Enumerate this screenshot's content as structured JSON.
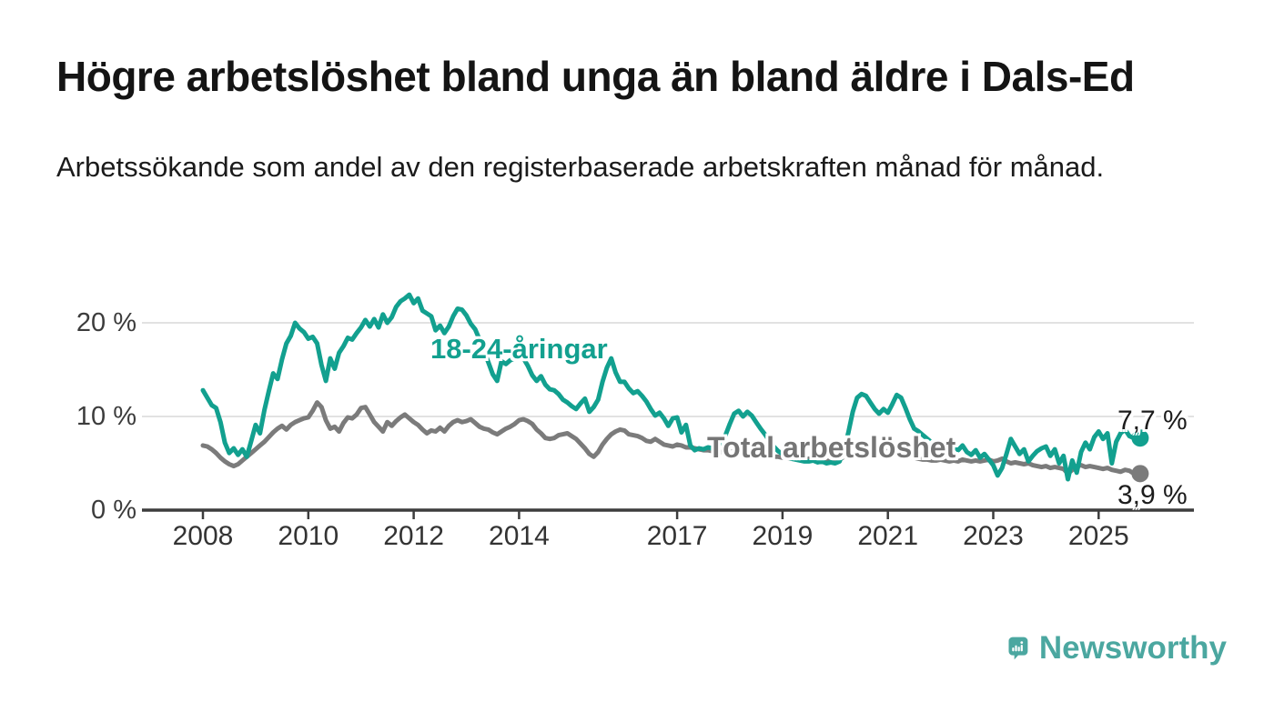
{
  "header": {
    "title": "Högre arbetslöshet bland unga än bland äldre i Dals-Ed",
    "subtitle": "Arbetssökande som andel av den registerbaserade arbetskraften månad för månad."
  },
  "chart_data": {
    "type": "line",
    "title": "Högre arbetslöshet bland unga än bland äldre i Dals-Ed",
    "subtitle": "Arbetssökande som andel av den registerbaserade arbetskraften månad för månad.",
    "x_unit": "month",
    "x_start": "2008-01",
    "x_end": "2025-09",
    "x_tick_years": [
      2008,
      2010,
      2012,
      2014,
      2017,
      2019,
      2021,
      2023,
      2025
    ],
    "y_ticks": [
      {
        "value": 0,
        "label": "0 %"
      },
      {
        "value": 10,
        "label": "10 %"
      },
      {
        "value": 20,
        "label": "20 %"
      }
    ],
    "ylim": [
      0,
      24
    ],
    "grid": "horizontal",
    "legend_position": "inline-labels",
    "series": [
      {
        "name": "Total arbetslöshet",
        "color": "#7b7b7b",
        "end_label": "3,9 %",
        "end_value": 3.9,
        "values": [
          6.9,
          6.8,
          6.5,
          6.1,
          5.6,
          5.2,
          4.9,
          4.7,
          4.9,
          5.3,
          5.7,
          6.1,
          6.5,
          6.9,
          7.3,
          7.8,
          8.3,
          8.7,
          9.0,
          8.6,
          9.1,
          9.4,
          9.6,
          9.8,
          9.9,
          10.6,
          11.5,
          11.0,
          9.6,
          8.7,
          8.9,
          8.4,
          9.3,
          9.9,
          9.8,
          10.2,
          10.9,
          11.0,
          10.2,
          9.4,
          8.9,
          8.4,
          9.4,
          9.0,
          9.5,
          9.9,
          10.2,
          9.8,
          9.4,
          9.1,
          8.6,
          8.2,
          8.5,
          8.4,
          8.8,
          8.4,
          9.0,
          9.4,
          9.6,
          9.4,
          9.5,
          9.7,
          9.3,
          8.9,
          8.7,
          8.6,
          8.3,
          8.1,
          8.4,
          8.7,
          8.9,
          9.2,
          9.6,
          9.7,
          9.5,
          9.2,
          8.6,
          8.2,
          7.7,
          7.6,
          7.7,
          8.0,
          8.1,
          8.2,
          7.9,
          7.6,
          7.1,
          6.6,
          6.0,
          5.7,
          6.2,
          7.0,
          7.6,
          8.1,
          8.4,
          8.6,
          8.5,
          8.1,
          8.0,
          7.9,
          7.7,
          7.4,
          7.3,
          7.6,
          7.3,
          7.0,
          6.9,
          6.8,
          7.0,
          6.9,
          6.7,
          6.7,
          6.6,
          6.5,
          6.4,
          6.4,
          6.3,
          6.3,
          6.2,
          6.2,
          6.2,
          6.3,
          6.2,
          6.1,
          6.0,
          6.0,
          5.9,
          5.9,
          5.8,
          5.8,
          5.7,
          5.7,
          5.6,
          5.6,
          5.5,
          5.5,
          5.4,
          5.4,
          5.5,
          5.4,
          5.4,
          5.3,
          5.3,
          5.3,
          5.3,
          5.4,
          5.7,
          6.2,
          6.6,
          6.8,
          6.9,
          6.8,
          6.7,
          6.5,
          6.4,
          6.3,
          6.3,
          6.2,
          6.1,
          6.0,
          5.9,
          5.7,
          5.6,
          5.5,
          5.4,
          5.4,
          5.3,
          5.3,
          5.4,
          5.3,
          5.2,
          5.3,
          5.2,
          5.4,
          5.3,
          5.2,
          5.3,
          5.2,
          5.3,
          5.4,
          5.2,
          5.3,
          5.5,
          5.2,
          5.0,
          5.1,
          5.0,
          4.9,
          5.0,
          4.8,
          4.7,
          4.6,
          4.7,
          4.5,
          4.6,
          4.5,
          4.4,
          3.9,
          4.3,
          4.7,
          4.8,
          4.6,
          4.7,
          4.6,
          4.5,
          4.4,
          4.5,
          4.3,
          4.2,
          4.1,
          4.3,
          4.2,
          3.9
        ]
      },
      {
        "name": "18-24-åringar",
        "color": "#12a08f",
        "end_label": "7,7 %",
        "end_value": 7.7,
        "values": [
          12.8,
          12.0,
          11.2,
          10.9,
          9.4,
          7.2,
          6.1,
          6.6,
          5.9,
          6.5,
          5.7,
          7.4,
          9.1,
          8.2,
          10.7,
          12.7,
          14.6,
          14.0,
          16.1,
          17.8,
          18.6,
          20.0,
          19.4,
          19.0,
          18.3,
          18.5,
          17.8,
          15.5,
          13.8,
          16.2,
          15.1,
          16.8,
          17.5,
          18.4,
          18.2,
          18.9,
          19.5,
          20.3,
          19.6,
          20.4,
          19.5,
          20.9,
          20.0,
          20.6,
          21.7,
          22.3,
          22.6,
          23.0,
          22.1,
          22.6,
          21.3,
          21.0,
          20.7,
          19.2,
          19.7,
          18.9,
          19.6,
          20.7,
          21.5,
          21.4,
          20.8,
          19.9,
          19.3,
          18.2,
          17.0,
          15.8,
          14.5,
          13.8,
          15.9,
          15.6,
          16.0,
          16.2,
          16.3,
          16.2,
          15.4,
          14.4,
          13.8,
          14.3,
          13.4,
          12.9,
          12.8,
          12.4,
          11.8,
          11.5,
          11.1,
          10.8,
          11.4,
          11.9,
          10.5,
          11.0,
          11.8,
          13.7,
          15.2,
          16.2,
          14.7,
          13.7,
          13.7,
          13.0,
          12.5,
          12.7,
          12.2,
          11.6,
          10.8,
          10.1,
          10.4,
          9.8,
          9.0,
          9.8,
          9.9,
          8.3,
          9.1,
          6.9,
          6.4,
          6.6,
          6.5,
          6.7,
          6.6,
          6.8,
          7.2,
          8.0,
          9.2,
          10.3,
          10.6,
          10.0,
          10.5,
          10.1,
          9.4,
          8.7,
          8.1,
          7.4,
          6.8,
          6.3,
          6.0,
          5.7,
          5.5,
          5.4,
          5.3,
          5.2,
          5.2,
          5.3,
          5.1,
          5.2,
          5.0,
          5.1,
          5.0,
          5.2,
          6.5,
          8.3,
          10.5,
          12.0,
          12.4,
          12.2,
          11.5,
          10.8,
          10.3,
          10.8,
          10.4,
          11.3,
          12.3,
          12.0,
          10.9,
          9.7,
          8.7,
          8.4,
          8.0,
          7.6,
          7.2,
          6.9,
          6.6,
          6.3,
          6.6,
          6.9,
          6.4,
          6.9,
          6.2,
          5.9,
          6.4,
          5.6,
          6.0,
          5.4,
          4.8,
          3.7,
          4.5,
          6.0,
          7.6,
          6.8,
          6.0,
          6.5,
          5.2,
          5.8,
          6.3,
          6.6,
          6.8,
          5.8,
          6.5,
          5.0,
          5.8,
          3.3,
          5.3,
          4.0,
          6.2,
          7.2,
          6.5,
          7.8,
          8.4,
          7.6,
          8.2,
          5.0,
          7.3,
          8.2,
          8.6,
          7.9,
          7.7
        ]
      }
    ],
    "colors": {
      "young_line": "#12a08f",
      "total_line": "#7b7b7b",
      "axis": "#3d3d3d",
      "gridline": "#d8d8d8",
      "brand_teal": "#4ba7a0"
    }
  },
  "footer": {
    "brand": "Newsworthy"
  }
}
